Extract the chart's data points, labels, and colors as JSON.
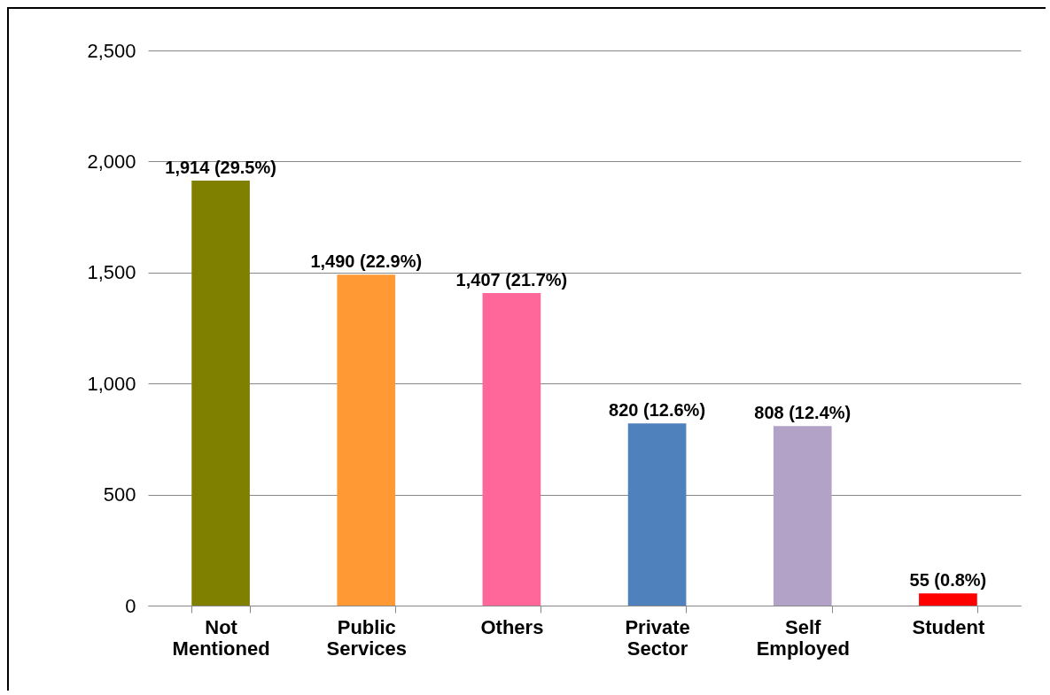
{
  "chart_data": {
    "type": "bar",
    "categories": [
      "Not Mentioned",
      "Public Services",
      "Others",
      "Private Sector",
      "Self Employed",
      "Student"
    ],
    "values": [
      1914,
      1490,
      1407,
      820,
      808,
      55
    ],
    "colors": [
      "#808000",
      "#ff9933",
      "#ff6699",
      "#4f81bd",
      "#b3a2c7",
      "#ff0000"
    ],
    "value_labels": [
      "1,914 (29.5%)",
      "1,490 (22.9%)",
      "1,407 (21.7%)",
      "820 (12.6%)",
      "808 (12.4%)",
      "55 (0.8%)"
    ],
    "ylim": [
      0,
      2500
    ],
    "yticks": [
      0,
      500,
      {
        "value": 1000,
        "label": "1,000"
      },
      {
        "value": 1500,
        "label": "1,500"
      },
      {
        "value": 2000,
        "label": "2,000"
      },
      {
        "value": 2500,
        "label": "2,500"
      }
    ],
    "grid": "y",
    "legend": false
  }
}
